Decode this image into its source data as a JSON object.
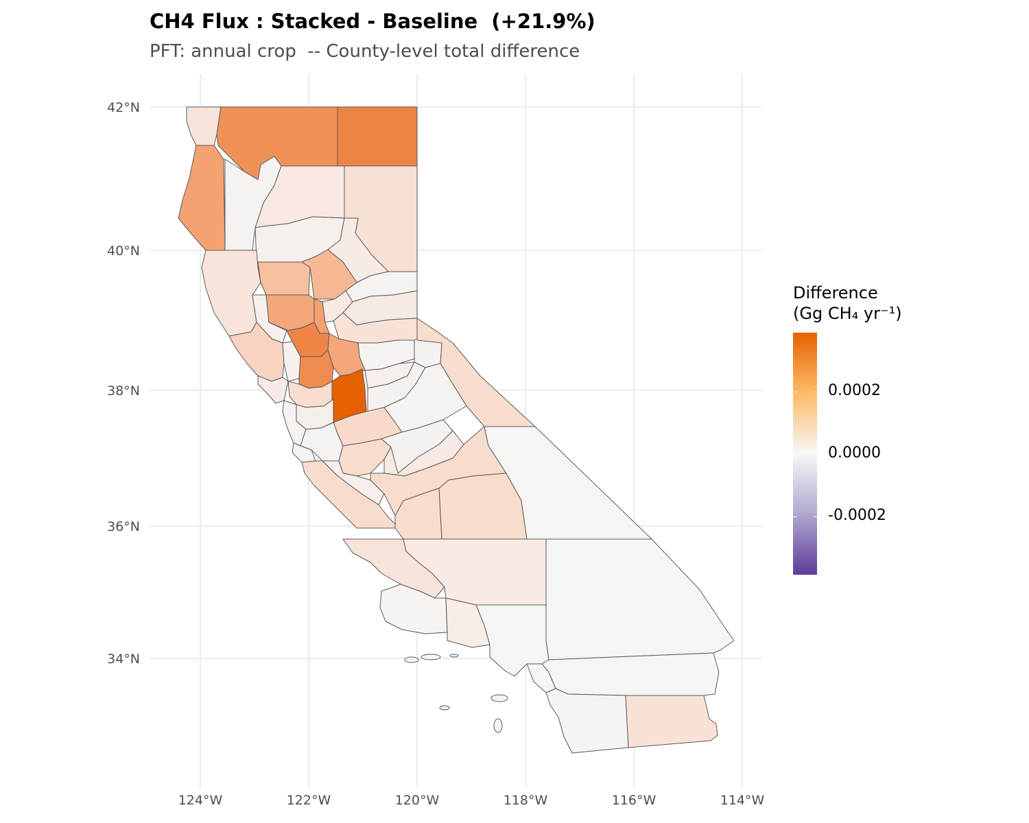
{
  "title": "CH4 Flux : Stacked - Baseline  (+21.9%)",
  "subtitle": "PFT: annual crop  -- County-level total difference",
  "axes": {
    "y_ticks": [
      "42°N",
      "40°N",
      "38°N",
      "36°N",
      "34°N"
    ],
    "x_ticks": [
      "124°W",
      "122°W",
      "120°W",
      "118°W",
      "116°W",
      "114°W"
    ]
  },
  "legend": {
    "title_line1": "Difference",
    "title_line2": "(Gg CH₄ yr⁻¹)",
    "labels": [
      "0.0002",
      "0.0000",
      "-0.0002"
    ],
    "colors": {
      "high": "#e66101",
      "mid": "#f7f7f7",
      "low": "#5e3c99"
    }
  },
  "colors": {
    "border": "#595959",
    "grid": "#ebebeb",
    "ocean": "#ffffff"
  }
}
